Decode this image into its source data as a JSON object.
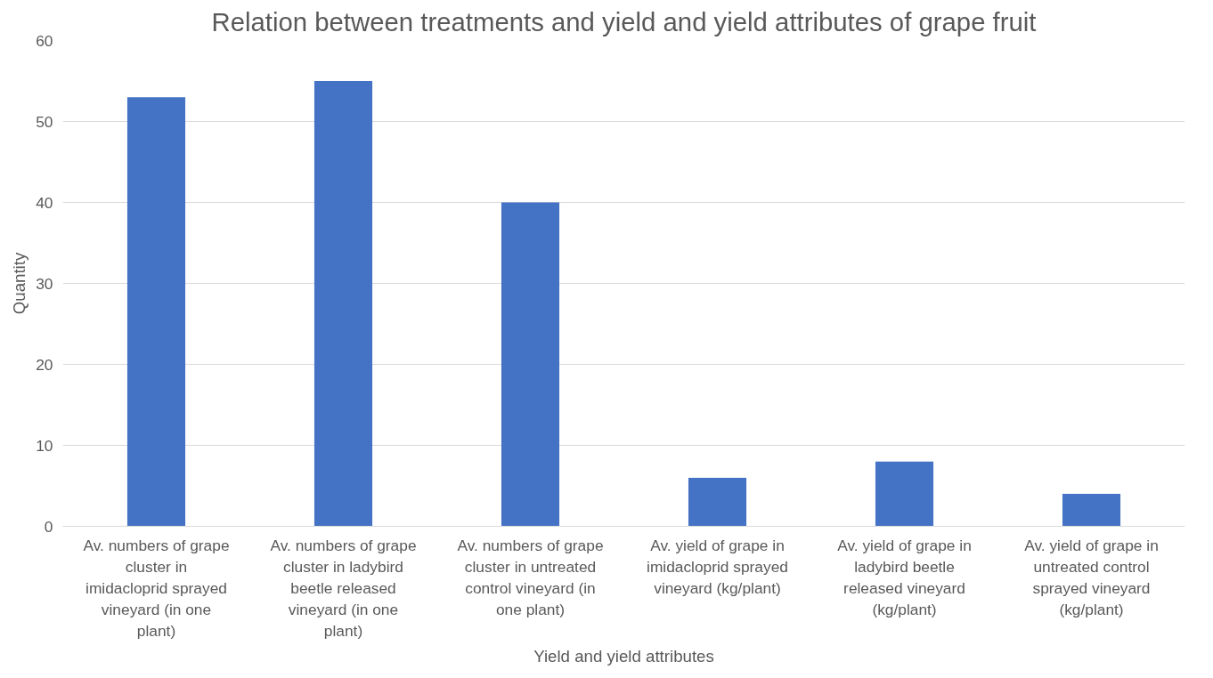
{
  "chart_data": {
    "type": "bar",
    "title": "Relation between treatments and yield and yield attributes of grape fruit",
    "xlabel": "Yield and yield attributes",
    "ylabel": "Quantity",
    "categories": [
      "Av. numbers of grape cluster in imidacloprid sprayed vineyard (in one plant)",
      "Av. numbers of grape cluster in ladybird beetle released vineyard (in one plant)",
      "Av. numbers of grape cluster in untreated control vineyard (in one plant)",
      "Av. yield of grape in imidacloprid sprayed vineyard (kg/plant)",
      "Av. yield of grape in ladybird beetle released vineyard (kg/plant)",
      "Av. yield of grape in untreated control sprayed vineyard (kg/plant)"
    ],
    "values": [
      53,
      55,
      40,
      6,
      8,
      4
    ],
    "color": "#4472c4",
    "ylim": [
      0,
      60
    ],
    "yticks": [
      0,
      10,
      20,
      30,
      40,
      50,
      60
    ],
    "grid": "y"
  }
}
